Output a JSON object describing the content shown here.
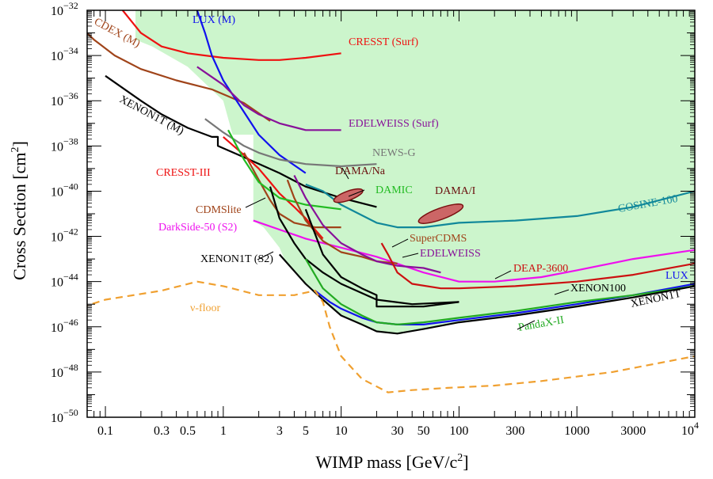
{
  "chart_data": {
    "type": "line",
    "xlabel_main": "WIMP mass [GeV/c",
    "xlabel_sup": "2",
    "xlabel_end": "]",
    "ylabel_main": "Cross Section [cm",
    "ylabel_sup": "2",
    "ylabel_end": "]",
    "x_scale": "log",
    "y_scale": "log",
    "xlim": [
      0.07,
      10000
    ],
    "ylim": [
      1e-50,
      1e-32
    ],
    "x_ticks": [
      {
        "v": 0.1,
        "label": "0.1"
      },
      {
        "v": 0.3,
        "label": "0.3"
      },
      {
        "v": 0.5,
        "label": "0.5"
      },
      {
        "v": 1,
        "label": "1"
      },
      {
        "v": 3,
        "label": "3"
      },
      {
        "v": 5,
        "label": "5"
      },
      {
        "v": 10,
        "label": "10"
      },
      {
        "v": 30,
        "label": "30"
      },
      {
        "v": 50,
        "label": "50"
      },
      {
        "v": 100,
        "label": "100"
      },
      {
        "v": 300,
        "label": "300"
      },
      {
        "v": 1000,
        "label": "1000"
      },
      {
        "v": 3000,
        "label": "3000"
      }
    ],
    "x_last_tick": {
      "base": "10",
      "exp": "4"
    },
    "y_ticks": [
      {
        "exp": -32,
        "base": "10",
        "sup": "−32"
      },
      {
        "exp": -34,
        "base": "10",
        "sup": "−34"
      },
      {
        "exp": -36,
        "base": "10",
        "sup": "−36"
      },
      {
        "exp": -38,
        "base": "10",
        "sup": "−38"
      },
      {
        "exp": -40,
        "base": "10",
        "sup": "−40"
      },
      {
        "exp": -42,
        "base": "10",
        "sup": "−42"
      },
      {
        "exp": -44,
        "base": "10",
        "sup": "−44"
      },
      {
        "exp": -46,
        "base": "10",
        "sup": "−46"
      },
      {
        "exp": -48,
        "base": "10",
        "sup": "−48"
      },
      {
        "exp": -50,
        "base": "10",
        "sup": "−50"
      }
    ],
    "excluded_region_color": "#ccf5cc",
    "series": [
      {
        "name": "CDEX (M)",
        "color": "#a0441a",
        "label_angle": 28,
        "points": [
          [
            0.05,
            -32.3
          ],
          [
            0.08,
            -33.3
          ],
          [
            0.12,
            -34.0
          ],
          [
            0.2,
            -34.6
          ],
          [
            0.4,
            -35.1
          ],
          [
            0.8,
            -35.5
          ],
          [
            1.5,
            -36.1
          ],
          [
            2.5,
            -36.9
          ]
        ]
      },
      {
        "name": "CRESST (Surf)",
        "color": "#ee1111",
        "points": [
          [
            0.14,
            -32.0
          ],
          [
            0.2,
            -33.0
          ],
          [
            0.3,
            -33.6
          ],
          [
            0.5,
            -33.9
          ],
          [
            1,
            -34.1
          ],
          [
            2,
            -34.2
          ],
          [
            3,
            -34.2
          ],
          [
            5,
            -34.1
          ],
          [
            10,
            -33.9
          ]
        ]
      },
      {
        "name": "LUX (M)",
        "color": "#1111ee",
        "points": [
          [
            0.6,
            -32.0
          ],
          [
            0.7,
            -33.0
          ],
          [
            0.8,
            -34.0
          ],
          [
            1,
            -35.1
          ],
          [
            1.5,
            -36.5
          ],
          [
            2,
            -37.5
          ],
          [
            3,
            -38.4
          ],
          [
            5,
            -39.2
          ]
        ]
      },
      {
        "name": "EDELWEISS (Surf)",
        "color": "#881199",
        "points": [
          [
            0.6,
            -34.5
          ],
          [
            1,
            -35.3
          ],
          [
            1.5,
            -36.2
          ],
          [
            2,
            -36.6
          ],
          [
            3,
            -37.0
          ],
          [
            5,
            -37.3
          ],
          [
            10,
            -37.3
          ]
        ]
      },
      {
        "name": "XENON1T (M)",
        "color": "#000000",
        "label_angle": 28,
        "points": [
          [
            0.1,
            -34.9
          ],
          [
            0.2,
            -36.0
          ],
          [
            0.3,
            -36.6
          ],
          [
            0.5,
            -37.2
          ],
          [
            0.8,
            -37.6
          ],
          [
            0.9,
            -37.6
          ],
          [
            0.9,
            -38.0
          ],
          [
            1.5,
            -38.5
          ],
          [
            3,
            -39.2
          ],
          [
            5,
            -39.8
          ],
          [
            10,
            -40.3
          ],
          [
            20,
            -40.7
          ]
        ]
      },
      {
        "name": "NEWS-G",
        "color": "#777777",
        "points": [
          [
            0.7,
            -36.8
          ],
          [
            1,
            -37.4
          ],
          [
            1.5,
            -38.0
          ],
          [
            2,
            -38.3
          ],
          [
            3,
            -38.6
          ],
          [
            5,
            -38.8
          ],
          [
            10,
            -38.9
          ],
          [
            20,
            -38.8
          ]
        ]
      },
      {
        "name": "CRESST-III",
        "color": "#ee1111",
        "points": [
          [
            1,
            -37.6
          ],
          [
            1.5,
            -38.4
          ],
          [
            2,
            -39.0
          ],
          [
            2.5,
            -39.6
          ],
          [
            3,
            -40.1
          ],
          [
            4,
            -40.7
          ],
          [
            5,
            -41.2
          ],
          [
            6,
            -41.7
          ],
          [
            7,
            -42.1
          ]
        ]
      },
      {
        "name": "CDMSlite",
        "color": "#a0441a",
        "points": [
          [
            1.5,
            -38.3
          ],
          [
            2,
            -39.5
          ],
          [
            2.5,
            -40.4
          ],
          [
            3,
            -41.0
          ],
          [
            4,
            -41.4
          ],
          [
            6,
            -41.6
          ],
          [
            10,
            -41.6
          ]
        ]
      },
      {
        "name": "DAMIC",
        "color": "#22bb22",
        "points": [
          [
            1.1,
            -37.3
          ],
          [
            1.5,
            -38.6
          ],
          [
            2,
            -39.6
          ],
          [
            3,
            -40.3
          ],
          [
            5,
            -40.6
          ],
          [
            10,
            -40.8
          ]
        ]
      },
      {
        "name": "DarkSide-50 (S2)",
        "color": "#ee11ee",
        "points": [
          [
            1.8,
            -41.3
          ],
          [
            3,
            -41.7
          ],
          [
            5,
            -42.1
          ],
          [
            10,
            -42.5
          ],
          [
            20,
            -42.9
          ],
          [
            50,
            -43.6
          ],
          [
            100,
            -44.0
          ],
          [
            200,
            -44.0
          ],
          [
            500,
            -43.8
          ],
          [
            1000,
            -43.5
          ],
          [
            3000,
            -43.0
          ],
          [
            10000,
            -42.6
          ]
        ]
      },
      {
        "name": "XENON1T (S2)",
        "color": "#000000",
        "points": [
          [
            2.5,
            -39.8
          ],
          [
            3,
            -41.2
          ],
          [
            4,
            -42.3
          ],
          [
            5,
            -43.0
          ],
          [
            7,
            -43.6
          ],
          [
            10,
            -44.1
          ],
          [
            20,
            -44.8
          ],
          [
            40,
            -45.0
          ],
          [
            100,
            -44.9
          ]
        ]
      },
      {
        "name": "COSINE-100",
        "color": "#11889a",
        "points": [
          [
            5,
            -39.7
          ],
          [
            7,
            -40.0
          ],
          [
            10,
            -40.6
          ],
          [
            20,
            -41.4
          ],
          [
            30,
            -41.6
          ],
          [
            50,
            -41.6
          ],
          [
            100,
            -41.4
          ],
          [
            300,
            -41.3
          ],
          [
            1000,
            -41.1
          ],
          [
            3000,
            -40.7
          ],
          [
            10000,
            -40.0
          ]
        ]
      },
      {
        "name": "SuperCDMS",
        "color": "#a0441a",
        "points": [
          [
            3.5,
            -39.5
          ],
          [
            4,
            -40.3
          ],
          [
            5,
            -41.3
          ],
          [
            7,
            -42.2
          ],
          [
            10,
            -42.7
          ],
          [
            15,
            -42.9
          ],
          [
            20,
            -43.1
          ],
          [
            30,
            -43.2
          ]
        ]
      },
      {
        "name": "EDELWEISS",
        "color": "#881199",
        "points": [
          [
            4,
            -39.3
          ],
          [
            5,
            -40.3
          ],
          [
            7,
            -41.5
          ],
          [
            10,
            -42.3
          ],
          [
            15,
            -42.8
          ],
          [
            20,
            -43.1
          ],
          [
            30,
            -43.3
          ],
          [
            50,
            -43.4
          ],
          [
            70,
            -43.6
          ]
        ]
      },
      {
        "name": "DEAP-3600",
        "color": "#cc1111",
        "points": [
          [
            22,
            -42.3
          ],
          [
            25,
            -42.8
          ],
          [
            30,
            -43.6
          ],
          [
            40,
            -44.1
          ],
          [
            70,
            -44.3
          ],
          [
            100,
            -44.3
          ],
          [
            300,
            -44.2
          ],
          [
            1000,
            -44.0
          ],
          [
            3000,
            -43.7
          ],
          [
            10000,
            -43.2
          ]
        ]
      },
      {
        "name": "XENON100",
        "color": "#000000",
        "points": [
          [
            5,
            -40.8
          ],
          [
            7,
            -42.8
          ],
          [
            10,
            -43.8
          ],
          [
            15,
            -44.3
          ],
          [
            20,
            -44.6
          ],
          [
            20,
            -45.1
          ],
          [
            30,
            -45.1
          ],
          [
            50,
            -45.1
          ],
          [
            100,
            -44.9
          ]
        ]
      },
      {
        "name": "LUX",
        "color": "#1111ee",
        "points": [
          [
            6,
            -44.4
          ],
          [
            8,
            -44.9
          ],
          [
            10,
            -45.2
          ],
          [
            15,
            -45.6
          ],
          [
            20,
            -45.8
          ],
          [
            30,
            -45.9
          ],
          [
            50,
            -45.9
          ],
          [
            100,
            -45.7
          ],
          [
            300,
            -45.4
          ],
          [
            1000,
            -45.0
          ],
          [
            3000,
            -44.6
          ],
          [
            10000,
            -44.1
          ]
        ]
      },
      {
        "name": "PandaX-II",
        "color": "#22aa22",
        "points": [
          [
            5,
            -43.0
          ],
          [
            7,
            -44.3
          ],
          [
            10,
            -45.0
          ],
          [
            15,
            -45.5
          ],
          [
            20,
            -45.8
          ],
          [
            30,
            -45.9
          ],
          [
            50,
            -45.8
          ],
          [
            100,
            -45.6
          ],
          [
            300,
            -45.3
          ],
          [
            1000,
            -44.9
          ],
          [
            3000,
            -44.6
          ],
          [
            10000,
            -44.2
          ]
        ]
      },
      {
        "name": "XENON1T",
        "color": "#000000",
        "points": [
          [
            3,
            -42.8
          ],
          [
            5,
            -44.1
          ],
          [
            7,
            -44.8
          ],
          [
            10,
            -45.5
          ],
          [
            15,
            -45.9
          ],
          [
            20,
            -46.2
          ],
          [
            30,
            -46.3
          ],
          [
            50,
            -46.1
          ],
          [
            100,
            -45.8
          ],
          [
            300,
            -45.5
          ],
          [
            1000,
            -45.1
          ],
          [
            3000,
            -44.7
          ],
          [
            10000,
            -44.2
          ]
        ]
      },
      {
        "name": "ν-floor",
        "color": "#f0a030",
        "dashed": true,
        "points": [
          [
            0.05,
            -45.3
          ],
          [
            0.1,
            -44.8
          ],
          [
            0.3,
            -44.4
          ],
          [
            0.6,
            -44.0
          ],
          [
            1,
            -44.2
          ],
          [
            2,
            -44.6
          ],
          [
            4,
            -44.6
          ],
          [
            6,
            -44.4
          ],
          [
            7,
            -44.9
          ],
          [
            8,
            -46.0
          ],
          [
            10,
            -47.3
          ],
          [
            15,
            -48.3
          ],
          [
            25,
            -48.9
          ],
          [
            40,
            -48.8
          ],
          [
            80,
            -48.7
          ],
          [
            200,
            -48.6
          ],
          [
            500,
            -48.4
          ],
          [
            2000,
            -48.0
          ],
          [
            10000,
            -47.3
          ]
        ]
      }
    ],
    "regions": [
      {
        "name": "DAMA/Na",
        "color": "#cc6666",
        "center": [
          11.5,
          -40.2
        ],
        "rx_dec": 0.13,
        "ry_dec": 0.2
      },
      {
        "name": "DAMA/I",
        "color": "#cc6666",
        "center": [
          70,
          -41.0
        ],
        "rx_dec": 0.2,
        "ry_dec": 0.25
      }
    ]
  }
}
